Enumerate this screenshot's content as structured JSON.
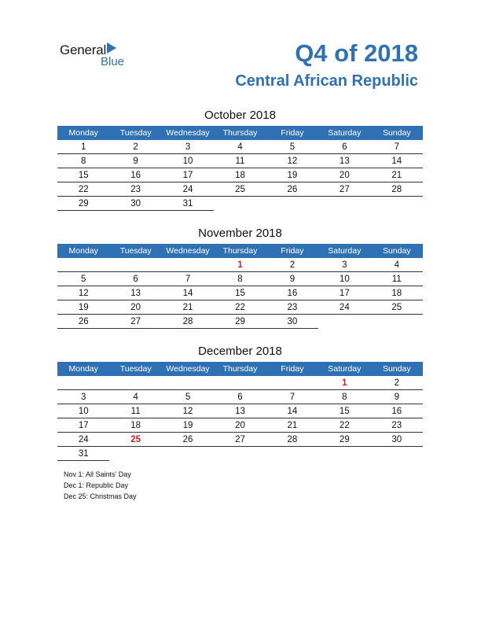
{
  "brand": {
    "word1": "General",
    "word2": "Blue"
  },
  "header": {
    "title": "Q4 of 2018",
    "country": "Central African Republic"
  },
  "colors": {
    "accent": "#2f71b5",
    "holiday": "#cc1f1f"
  },
  "weekdays": [
    "Monday",
    "Tuesday",
    "Wednesday",
    "Thursday",
    "Friday",
    "Saturday",
    "Sunday"
  ],
  "months": [
    {
      "title": "October 2018",
      "weeks": [
        [
          "1",
          "2",
          "3",
          "4",
          "5",
          "6",
          "7"
        ],
        [
          "8",
          "9",
          "10",
          "11",
          "12",
          "13",
          "14"
        ],
        [
          "15",
          "16",
          "17",
          "18",
          "19",
          "20",
          "21"
        ],
        [
          "22",
          "23",
          "24",
          "25",
          "26",
          "27",
          "28"
        ],
        [
          "29",
          "30",
          "31",
          "",
          "",
          "",
          ""
        ]
      ],
      "holidays": []
    },
    {
      "title": "November 2018",
      "weeks": [
        [
          "",
          "",
          "",
          "1",
          "2",
          "3",
          "4"
        ],
        [
          "5",
          "6",
          "7",
          "8",
          "9",
          "10",
          "11"
        ],
        [
          "12",
          "13",
          "14",
          "15",
          "16",
          "17",
          "18"
        ],
        [
          "19",
          "20",
          "21",
          "22",
          "23",
          "24",
          "25"
        ],
        [
          "26",
          "27",
          "28",
          "29",
          "30",
          "",
          ""
        ]
      ],
      "holidays": [
        "1"
      ]
    },
    {
      "title": "December 2018",
      "weeks": [
        [
          "",
          "",
          "",
          "",
          "",
          "1",
          "2"
        ],
        [
          "3",
          "4",
          "5",
          "6",
          "7",
          "8",
          "9"
        ],
        [
          "10",
          "11",
          "12",
          "13",
          "14",
          "15",
          "16"
        ],
        [
          "17",
          "18",
          "19",
          "20",
          "21",
          "22",
          "23"
        ],
        [
          "24",
          "25",
          "26",
          "27",
          "28",
          "29",
          "30"
        ],
        [
          "31",
          "",
          "",
          "",
          "",
          "",
          ""
        ]
      ],
      "holidays": [
        "1",
        "25"
      ]
    }
  ],
  "notes": [
    "Nov 1: All Saints’ Day",
    "Dec 1: Republic Day",
    "Dec 25: Christmas Day"
  ]
}
